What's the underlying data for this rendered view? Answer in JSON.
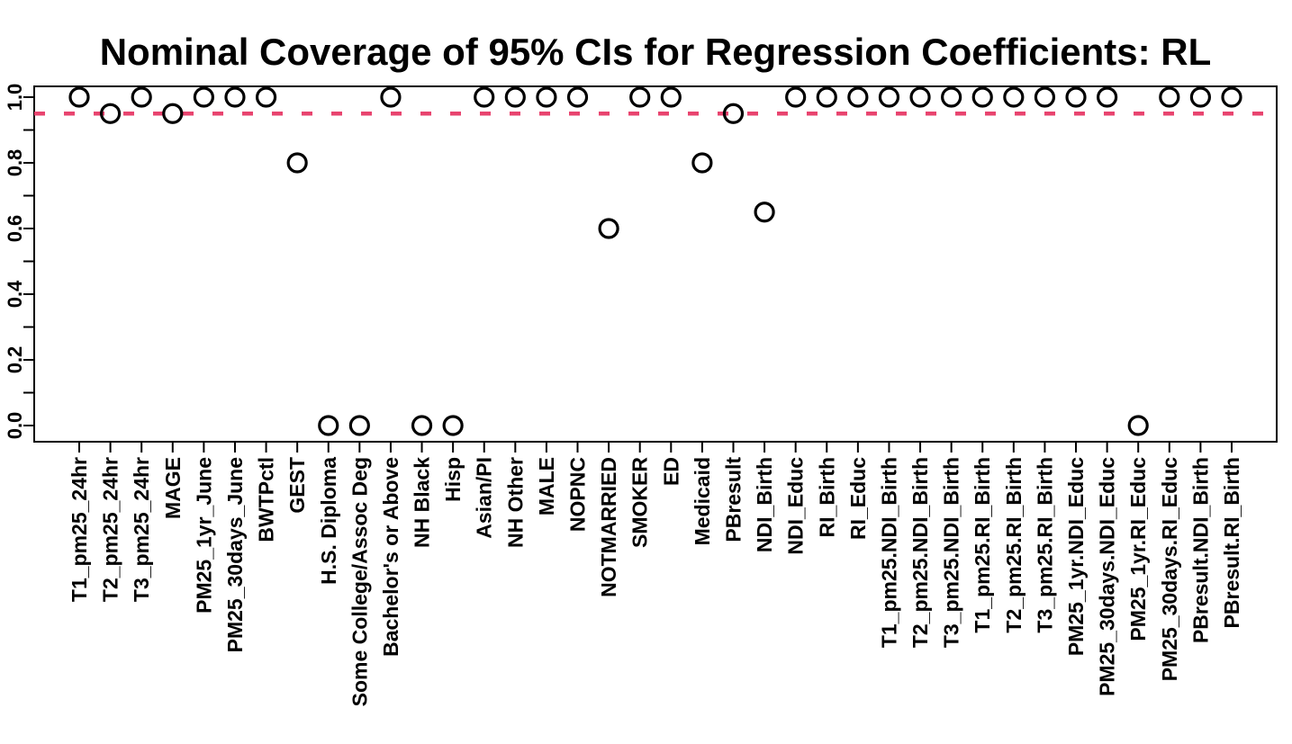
{
  "chart_data": {
    "type": "scatter",
    "title": "Nominal Coverage of 95% CIs for Regression Coefficients: RL",
    "xlabel": "",
    "ylabel": "",
    "ylim": [
      0.0,
      1.0
    ],
    "y_tick_labels": [
      "0.0",
      "0.2",
      "0.4",
      "0.6",
      "0.8",
      "1.0"
    ],
    "y_minor_tick_step": 0.1,
    "grid": false,
    "legend": false,
    "point_style": {
      "shape": "open-circle",
      "color": "#000000"
    },
    "reference_line": {
      "y": 0.95,
      "style": "dashed",
      "color": "#E8446F"
    },
    "categories": [
      "T1_pm25_24hr",
      "T2_pm25_24hr",
      "T3_pm25_24hr",
      "MAGE",
      "PM25_1yr_June",
      "PM25_30days_June",
      "BWTPctl",
      "GEST",
      "H.S. Diploma",
      "Some College/Assoc Deg",
      "Bachelor's or Above",
      "NH Black",
      "Hisp",
      "Asian/PI",
      "NH Other",
      "MALE",
      "NOPNC",
      "NOTMARRIED",
      "SMOKER",
      "ED",
      "Medicaid",
      "PBresult",
      "NDI_Birth",
      "NDI_Educ",
      "RI_Birth",
      "RI_Educ",
      "T1_pm25.NDI_Birth",
      "T2_pm25.NDI_Birth",
      "T3_pm25.NDI_Birth",
      "T1_pm25.RI_Birth",
      "T2_pm25.RI_Birth",
      "T3_pm25.RI_Birth",
      "PM25_1yr.NDI_Educ",
      "PM25_30days.NDI_Educ",
      "PM25_1yr.RI_Educ",
      "PM25_30days.RI_Educ",
      "PBresult.NDI_Birth",
      "PBresult.RI_Birth"
    ],
    "values": [
      1.0,
      0.95,
      1.0,
      0.95,
      1.0,
      1.0,
      1.0,
      0.8,
      0.0,
      0.0,
      1.0,
      0.0,
      0.0,
      1.0,
      1.0,
      1.0,
      1.0,
      0.6,
      1.0,
      1.0,
      0.8,
      0.95,
      0.65,
      1.0,
      1.0,
      1.0,
      1.0,
      1.0,
      1.0,
      1.0,
      1.0,
      1.0,
      1.0,
      1.0,
      0.0,
      1.0,
      1.0,
      1.0
    ]
  },
  "colors": {
    "background": "#FFFFFF",
    "axis": "#000000",
    "points": "#000000",
    "reference_line": "#E8446F"
  }
}
